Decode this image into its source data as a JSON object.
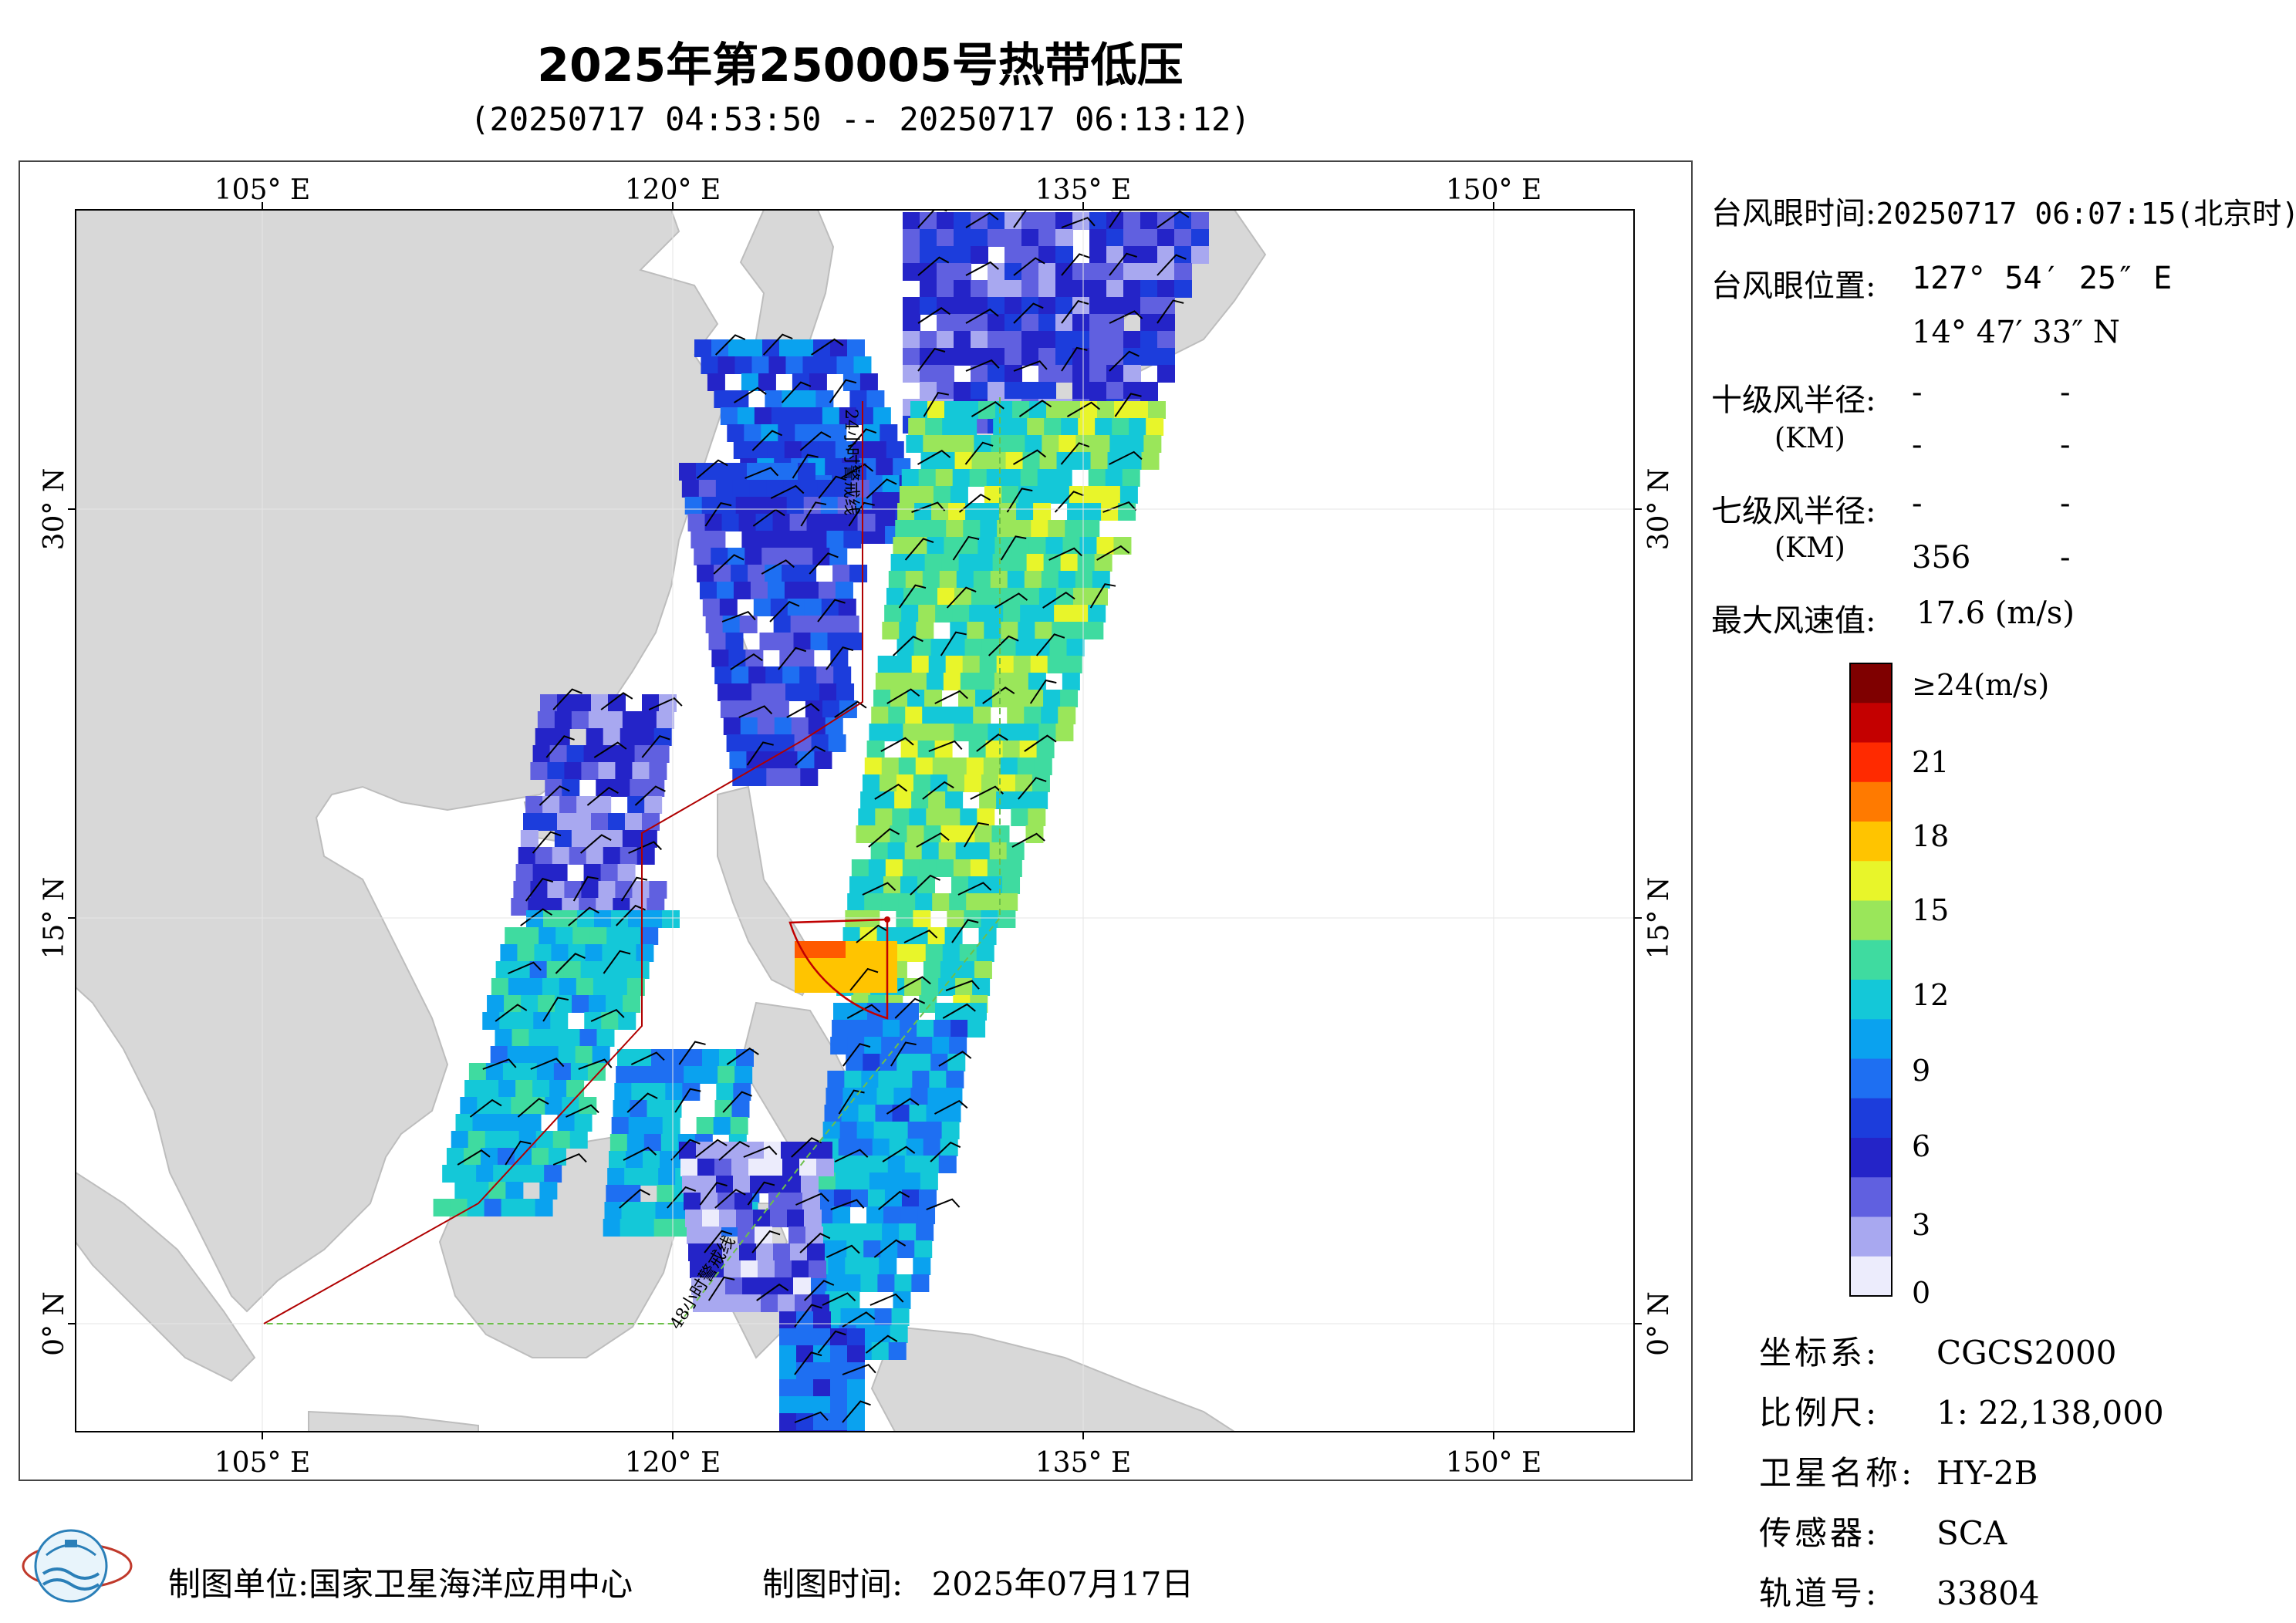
{
  "title": "2025年第250005号热带低压",
  "subtitle": "(20250717 04:53:50 -- 20250717 06:13:12)",
  "axes": {
    "lon_ticks": [
      "105° E",
      "120° E",
      "135° E",
      "150° E"
    ],
    "lat_ticks": [
      "30° N",
      "15° N",
      "0° N"
    ]
  },
  "warning_lines": {
    "line24": "24小时警戒线",
    "line48": "48小时警戒线"
  },
  "info": {
    "eye_time_label": "台风眼时间:",
    "eye_time_value": "20250717 06:07:15(北京时)",
    "eye_pos_label": "台风眼位置:",
    "eye_lon": "127° 54′ 25″ E",
    "eye_lat": "14° 47′ 33″ N",
    "r10_label": "十级风半径:",
    "r10_unit": "(KM)",
    "r10_values": [
      "-",
      "-",
      "-",
      "-"
    ],
    "r7_label": "七级风半径:",
    "r7_unit": "(KM)",
    "r7_values": [
      "-",
      "-",
      "356",
      "-"
    ],
    "max_wind_label": "最大风速值:",
    "max_wind_value": "17.6  (m/s)"
  },
  "colorbar": {
    "labels": [
      "≥24(m/s)",
      "21",
      "18",
      "15",
      "12",
      "9",
      "6",
      "3",
      "0"
    ],
    "colors": [
      "#7f0000",
      "#c40000",
      "#ff2a00",
      "#ff7a00",
      "#ffc400",
      "#e8f52a",
      "#9ae65a",
      "#3fdba0",
      "#14c8d8",
      "#0aa2ef",
      "#1e6ff2",
      "#1c3ddc",
      "#2424c8",
      "#6060e0",
      "#a8a8f0",
      "#ececfc"
    ]
  },
  "meta": {
    "crs_label": "坐标系:",
    "crs_value": "CGCS2000",
    "scale_label": "比例尺:",
    "scale_value": "1: 22,138,000",
    "satellite_label": "卫星名称:",
    "satellite_value": "HY-2B",
    "sensor_label": "传感器:",
    "sensor_value": "SCA",
    "orbit_label": "轨道号:",
    "orbit_value": "33804"
  },
  "footer": {
    "org_label": "制图单位:",
    "org_value": "国家卫星海洋应用中心",
    "time_label": "制图时间:",
    "time_value": "2025年07月17日"
  },
  "logo_icon": "nsoas-globe-icon"
}
